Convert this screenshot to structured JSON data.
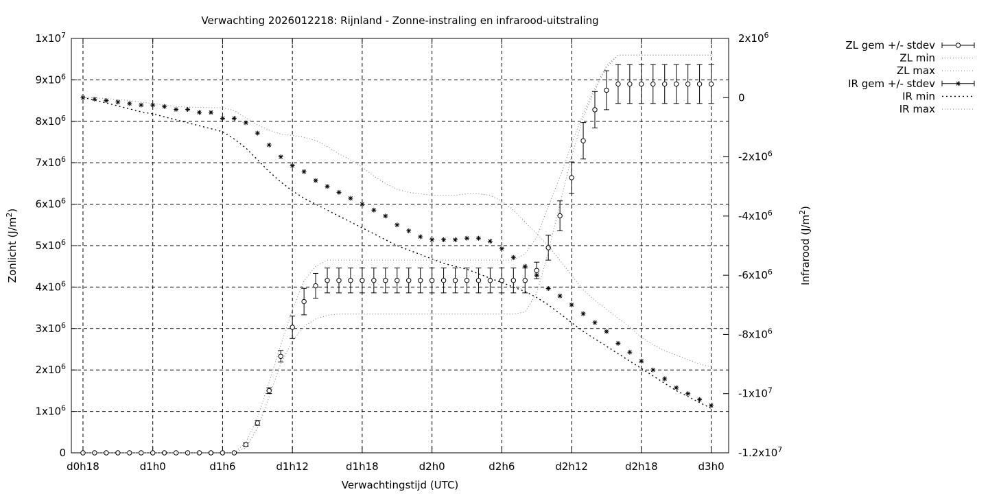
{
  "chart_data": {
    "type": "line",
    "title": "Verwachting 2026012218: Rijnland - Zonne-instraling en infrarood-uitstraling",
    "xlabel": "Verwachtingstijd (UTC)",
    "ylabel_left_base": "Zonlicht (J/m",
    "ylabel_left_sup": "2",
    "ylabel_left_end": ")",
    "ylabel_right_base": "Infrarood (J/m",
    "ylabel_right_sup": "2",
    "ylabel_right_end": ")",
    "x_unit": "hours since d0h18",
    "xlim": [
      -1,
      55.5
    ],
    "ylim_left": [
      0,
      10000000
    ],
    "ylim_right": [
      -12000000,
      2000000
    ],
    "grid": true,
    "legend_position": "outside-top-right",
    "x_ticks": [
      {
        "x": 0,
        "label": "d0h18"
      },
      {
        "x": 6,
        "label": "d1h0"
      },
      {
        "x": 12,
        "label": "d1h6"
      },
      {
        "x": 18,
        "label": "d1h12"
      },
      {
        "x": 24,
        "label": "d1h18"
      },
      {
        "x": 30,
        "label": "d2h0"
      },
      {
        "x": 36,
        "label": "d2h6"
      },
      {
        "x": 42,
        "label": "d2h12"
      },
      {
        "x": 48,
        "label": "d2h18"
      },
      {
        "x": 54,
        "label": "d3h0"
      }
    ],
    "y_ticks_left": [
      {
        "v": 0,
        "base": "0",
        "exp": ""
      },
      {
        "v": 1000000,
        "base": "1x10",
        "exp": "6"
      },
      {
        "v": 2000000,
        "base": "2x10",
        "exp": "6"
      },
      {
        "v": 3000000,
        "base": "3x10",
        "exp": "6"
      },
      {
        "v": 4000000,
        "base": "4x10",
        "exp": "6"
      },
      {
        "v": 5000000,
        "base": "5x10",
        "exp": "6"
      },
      {
        "v": 6000000,
        "base": "6x10",
        "exp": "6"
      },
      {
        "v": 7000000,
        "base": "7x10",
        "exp": "6"
      },
      {
        "v": 8000000,
        "base": "8x10",
        "exp": "6"
      },
      {
        "v": 9000000,
        "base": "9x10",
        "exp": "6"
      },
      {
        "v": 10000000,
        "base": "1x10",
        "exp": "7"
      }
    ],
    "y_ticks_right": [
      {
        "v": 2000000,
        "base": "2x10",
        "exp": "6"
      },
      {
        "v": 0,
        "base": "0",
        "exp": ""
      },
      {
        "v": -2000000,
        "base": "-2x10",
        "exp": "6"
      },
      {
        "v": -4000000,
        "base": "-4x10",
        "exp": "6"
      },
      {
        "v": -6000000,
        "base": "-6x10",
        "exp": "6"
      },
      {
        "v": -8000000,
        "base": "-8x10",
        "exp": "6"
      },
      {
        "v": -10000000,
        "base": "-1x10",
        "exp": "7"
      },
      {
        "v": -12000000,
        "base": "-1.2x10",
        "exp": "7"
      }
    ],
    "x": [
      0,
      1,
      2,
      3,
      4,
      5,
      6,
      7,
      8,
      9,
      10,
      11,
      12,
      13,
      14,
      15,
      16,
      17,
      18,
      19,
      20,
      21,
      22,
      23,
      24,
      25,
      26,
      27,
      28,
      29,
      30,
      31,
      32,
      33,
      34,
      35,
      36,
      37,
      38,
      39,
      40,
      41,
      42,
      43,
      44,
      45,
      46,
      47,
      48,
      49,
      50,
      51,
      52,
      53,
      54
    ],
    "series": [
      {
        "name": "ZL gem +/- stdev",
        "axis": "left",
        "marker": "circle",
        "mean": [
          0,
          0,
          0,
          0,
          0,
          0,
          0,
          0,
          0,
          0,
          0,
          0,
          0,
          0,
          200000,
          720000,
          1500000,
          2330000,
          3030000,
          3650000,
          4030000,
          4160000,
          4160000,
          4160000,
          4160000,
          4160000,
          4160000,
          4160000,
          4160000,
          4160000,
          4160000,
          4160000,
          4160000,
          4160000,
          4160000,
          4160000,
          4160000,
          4160000,
          4160000,
          4400000,
          4950000,
          5720000,
          6640000,
          7530000,
          8280000,
          8750000,
          8900000,
          8900000,
          8900000,
          8900000,
          8900000,
          8900000,
          8900000,
          8900000,
          8900000
        ],
        "stdev": [
          0,
          0,
          0,
          0,
          0,
          0,
          0,
          0,
          0,
          0,
          0,
          0,
          0,
          0,
          40000,
          60000,
          70000,
          140000,
          270000,
          320000,
          300000,
          300000,
          300000,
          300000,
          300000,
          300000,
          300000,
          300000,
          300000,
          300000,
          300000,
          300000,
          300000,
          300000,
          300000,
          300000,
          300000,
          300000,
          300000,
          200000,
          300000,
          360000,
          380000,
          440000,
          440000,
          470000,
          470000,
          470000,
          470000,
          470000,
          470000,
          470000,
          470000,
          470000,
          470000
        ]
      },
      {
        "name": "ZL min",
        "axis": "left",
        "style": "dotted",
        "values": [
          0,
          0,
          0,
          0,
          0,
          0,
          0,
          0,
          0,
          0,
          0,
          0,
          0,
          0,
          120000,
          600000,
          1350000,
          2150000,
          2700000,
          3050000,
          3230000,
          3320000,
          3350000,
          3350000,
          3350000,
          3350000,
          3350000,
          3350000,
          3350000,
          3350000,
          3350000,
          3350000,
          3350000,
          3350000,
          3350000,
          3350000,
          3350000,
          3350000,
          3400000,
          3850000,
          4850000,
          6000000,
          7150000,
          8100000,
          8750000,
          9300000,
          9600000,
          9600000,
          9600000,
          9600000,
          9600000,
          9600000,
          9600000,
          9600000,
          9600000
        ]
      },
      {
        "name": "ZL max",
        "axis": "left",
        "style": "dotted",
        "values": [
          0,
          0,
          0,
          0,
          0,
          0,
          0,
          0,
          0,
          0,
          0,
          0,
          0,
          0,
          250000,
          850000,
          1700000,
          2600000,
          3450000,
          4150000,
          4500000,
          4650000,
          4650000,
          4650000,
          4650000,
          4650000,
          4650000,
          4650000,
          4650000,
          4650000,
          4650000,
          4650000,
          4650000,
          4650000,
          4650000,
          4650000,
          4650000,
          4650000,
          4800000,
          5200000,
          5950000,
          6650000,
          7450000,
          8200000,
          8800000,
          9350000,
          9600000,
          9600000,
          9600000,
          9600000,
          9600000,
          9600000,
          9600000,
          9600000,
          9600000
        ]
      },
      {
        "name": "IR gem +/- stdev",
        "axis": "right",
        "marker": "star",
        "mean": [
          0,
          -50000,
          -100000,
          -150000,
          -200000,
          -250000,
          -250000,
          -300000,
          -400000,
          -400000,
          -500000,
          -500000,
          -700000,
          -700000,
          -850000,
          -1200000,
          -1600000,
          -2000000,
          -2300000,
          -2500000,
          -2800000,
          -3000000,
          -3200000,
          -3400000,
          -3600000,
          -3800000,
          -4000000,
          -4300000,
          -4500000,
          -4700000,
          -4800000,
          -4800000,
          -4800000,
          -4750000,
          -4750000,
          -4850000,
          -5100000,
          -5400000,
          -5700000,
          -6000000,
          -6450000,
          -6700000,
          -7000000,
          -7300000,
          -7600000,
          -7900000,
          -8300000,
          -8600000,
          -8900000,
          -9200000,
          -9500000,
          -9800000,
          -10000000,
          -10200000,
          -10400000
        ]
      },
      {
        "name": "IR min",
        "axis": "right",
        "style": "dotted",
        "values": [
          0,
          -80000,
          -180000,
          -280000,
          -380000,
          -480000,
          -550000,
          -650000,
          -750000,
          -850000,
          -950000,
          -1050000,
          -1150000,
          -1400000,
          -1700000,
          -2100000,
          -2500000,
          -2850000,
          -3150000,
          -3400000,
          -3600000,
          -3800000,
          -4000000,
          -4200000,
          -4400000,
          -4600000,
          -4800000,
          -5000000,
          -5150000,
          -5300000,
          -5450000,
          -5600000,
          -5700000,
          -5800000,
          -5950000,
          -6100000,
          -6250000,
          -6400000,
          -6550000,
          -6750000,
          -7000000,
          -7300000,
          -7600000,
          -7900000,
          -8150000,
          -8400000,
          -8650000,
          -8900000,
          -9150000,
          -9400000,
          -9650000,
          -9900000,
          -10100000,
          -10300000,
          -10500000
        ]
      },
      {
        "name": "IR max",
        "axis": "right",
        "style": "dotted",
        "values": [
          0,
          -10000,
          -30000,
          -60000,
          -100000,
          -150000,
          -200000,
          -250000,
          -300000,
          -320000,
          -330000,
          -340000,
          -340000,
          -440000,
          -680000,
          -920000,
          -1100000,
          -1230000,
          -1280000,
          -1340000,
          -1450000,
          -1650000,
          -1900000,
          -2100000,
          -2350000,
          -2650000,
          -2900000,
          -3100000,
          -3200000,
          -3250000,
          -3300000,
          -3300000,
          -3300000,
          -3250000,
          -3250000,
          -3300000,
          -3500000,
          -3800000,
          -4200000,
          -4600000,
          -5000000,
          -5500000,
          -6000000,
          -6500000,
          -6850000,
          -7150000,
          -7450000,
          -7750000,
          -8100000,
          -8350000,
          -8550000,
          -8700000,
          -8850000,
          -9000000,
          -9100000
        ]
      }
    ],
    "legend": [
      {
        "label": "ZL gem +/- stdev",
        "kind": "errorbar",
        "marker": "circle"
      },
      {
        "label": "ZL min",
        "kind": "line",
        "style": "fine-dot"
      },
      {
        "label": "ZL max",
        "kind": "line",
        "style": "fine-dot"
      },
      {
        "label": "IR gem +/- stdev",
        "kind": "errorbar",
        "marker": "star"
      },
      {
        "label": "IR min",
        "kind": "line",
        "style": "coarse-dot"
      },
      {
        "label": "IR max",
        "kind": "line",
        "style": "fine-dot"
      }
    ]
  }
}
